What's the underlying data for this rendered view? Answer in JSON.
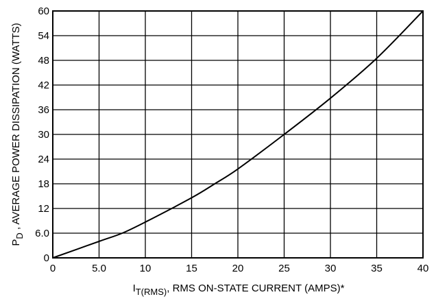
{
  "chart_data": {
    "type": "line",
    "title": "",
    "xlabel": {
      "symbol": "I",
      "subscript": "T(RMS)",
      "text": ", RMS ON-STATE CURRENT (AMPS)*"
    },
    "ylabel": {
      "symbol": "P",
      "subscript": "D",
      "text": " , AVERAGE POWER DISSIPATION (WATTS)"
    },
    "xlim": [
      0,
      40
    ],
    "ylim": [
      0,
      60
    ],
    "x_ticks": [
      {
        "value": 0,
        "label": "0"
      },
      {
        "value": 5,
        "label": "5.0"
      },
      {
        "value": 10,
        "label": "10"
      },
      {
        "value": 15,
        "label": "15"
      },
      {
        "value": 20,
        "label": "20"
      },
      {
        "value": 25,
        "label": "25"
      },
      {
        "value": 30,
        "label": "30"
      },
      {
        "value": 35,
        "label": "35"
      },
      {
        "value": 40,
        "label": "40"
      }
    ],
    "y_ticks": [
      {
        "value": 0,
        "label": "0"
      },
      {
        "value": 6,
        "label": "6.0"
      },
      {
        "value": 12,
        "label": "12"
      },
      {
        "value": 18,
        "label": "18"
      },
      {
        "value": 24,
        "label": "24"
      },
      {
        "value": 30,
        "label": "30"
      },
      {
        "value": 36,
        "label": "36"
      },
      {
        "value": 42,
        "label": "42"
      },
      {
        "value": 48,
        "label": "48"
      },
      {
        "value": 54,
        "label": "54"
      },
      {
        "value": 60,
        "label": "60"
      }
    ],
    "grid": true,
    "series": [
      {
        "x": [
          0,
          5,
          7.5,
          10,
          15,
          17.5,
          20,
          25,
          30,
          35,
          40
        ],
        "y": [
          0,
          4,
          6,
          8.7,
          14.6,
          18,
          21.6,
          30,
          38.8,
          48.5,
          60
        ]
      }
    ]
  }
}
